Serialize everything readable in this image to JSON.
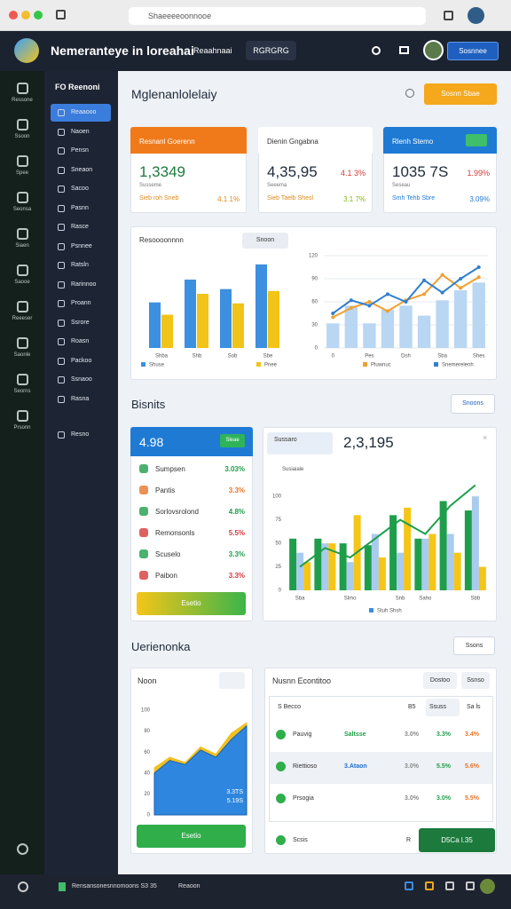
{
  "browser": {
    "url": "Shaeeeeoonnooe"
  },
  "header": {
    "title": "Nemeranteye in loreahai",
    "nav": "Reaahnaai",
    "tab": "RGRGRG",
    "action": "Sosnnee"
  },
  "rail": {
    "labels": [
      "Ressone",
      "Ssoon",
      "Spee",
      "Seonsa",
      "Siaen",
      "Saooe",
      "Reeeser",
      "Saonle",
      "Seorns",
      "Prsonn"
    ]
  },
  "sidebar": {
    "title": "FO Reenoni",
    "items": [
      "Reaaooo",
      "Naoen",
      "Pensn",
      "Sneaon",
      "Sacoo",
      "Pasnn",
      "Rasce",
      "Psnnee",
      "Ratsln",
      "Rarinnoo",
      "Proann",
      "Ssrore",
      "Roasn",
      "Packoo",
      "Ssnaoo",
      "Rasna"
    ],
    "footer": "Resno"
  },
  "page": {
    "title": "Mglenanlolelaiy",
    "action": "Sosnn Sbae"
  },
  "kpis": [
    {
      "title": "Resnanl Goerenn",
      "value": "1,3349",
      "sub": "Susseme",
      "foot_left": "Sieb roh Sneb",
      "foot_right": "4.1 1%",
      "accent": "#f07a1a",
      "value_color": "#1d7a3e"
    },
    {
      "title": "Dienin Gngabna",
      "value": "4,35,95",
      "change": "4.1 3%",
      "sub": "Seeema",
      "foot_left": "Sieb Taelb Shesl",
      "foot_right": "3.1 7%",
      "accent": "#ffffff",
      "value_color": "#1d2a3a"
    },
    {
      "title": "Rlenh Stemo",
      "value": "1035 7S",
      "change": "1.99%",
      "sub": "Seseau",
      "foot_left": "Smh Tehb Sbre",
      "foot_right": "3.09%",
      "accent": "#1f7ad4",
      "value_color": "#1d2a3a"
    }
  ],
  "overview": {
    "bar_chart": {
      "type": "bar",
      "title": "Resoooonnnn",
      "action": "Snoon",
      "categories": [
        "Shba",
        "Shb",
        "Sob",
        "Sbe"
      ],
      "ylim": [
        0,
        100
      ],
      "series": [
        {
          "name": "Shuse",
          "color": "#3d8fe0",
          "values": [
            48,
            72,
            62,
            88
          ]
        },
        {
          "name": "Pnee",
          "color": "#f2c318",
          "values": [
            35,
            57,
            47,
            60
          ]
        }
      ]
    },
    "combo_chart": {
      "type": "line",
      "categories": [
        "0",
        null,
        "Pes",
        null,
        "Dsh",
        null,
        "Sba",
        null,
        "Shes"
      ],
      "ylim": [
        0,
        120
      ],
      "yticks": [
        0,
        30,
        60,
        90,
        120
      ],
      "grid": true,
      "bar_color": "#b9d6f2",
      "values": [
        32,
        55,
        32,
        50,
        55,
        42,
        62,
        75,
        85
      ],
      "series": [
        {
          "name": "Pluwnuc",
          "color": "#f0a030",
          "values": [
            40,
            52,
            60,
            48,
            62,
            70,
            95,
            78,
            92
          ]
        },
        {
          "name": "Snemerelenh",
          "color": "#2f7fd0",
          "values": [
            45,
            62,
            55,
            70,
            60,
            88,
            72,
            90,
            105
          ]
        }
      ]
    }
  },
  "section2": {
    "title": "Bisnits",
    "action": "Snoons"
  },
  "summary": {
    "value": "4.98",
    "badge": "Sleae",
    "button": "Esetio",
    "items": [
      {
        "name": "Sumpsen",
        "change": "3.03%",
        "color": "#1e9e4a"
      },
      {
        "name": "Pantis",
        "change": "3.3%",
        "color": "#e8742a"
      },
      {
        "name": "Sorlovsrolond",
        "change": "4.8%",
        "color": "#1e9e4a"
      },
      {
        "name": "Remonsonls",
        "change": "5.5%",
        "color": "#d63a3a"
      },
      {
        "name": "Scuselo",
        "change": "3.3%",
        "color": "#1e9e4a"
      },
      {
        "name": "Paibon",
        "change": "3.3%",
        "color": "#d63a3a"
      }
    ]
  },
  "trend": {
    "filter": "Sussaro",
    "value": "2,3,195",
    "subtitle": "Susiaiale",
    "chart": {
      "type": "bar",
      "categories": [
        "Sba",
        null,
        "Slmo",
        null,
        "Snb",
        "Saho",
        null,
        "Sbb"
      ],
      "ylim": [
        0,
        120
      ],
      "yticks": [
        0,
        25,
        50,
        75,
        100
      ],
      "bar_groups": [
        {
          "color": "#1e9e4a",
          "values": [
            55,
            55,
            50,
            48,
            80,
            55,
            95,
            85
          ]
        },
        {
          "color": "#a9cbee",
          "values": [
            40,
            50,
            30,
            60,
            40,
            55,
            60,
            100
          ]
        },
        {
          "color": "#f5c518",
          "values": [
            30,
            50,
            80,
            35,
            88,
            60,
            40,
            25
          ]
        }
      ],
      "series": [
        {
          "name": "Stuh Shsh",
          "color": "#1e9e4a",
          "values": [
            25,
            45,
            35,
            55,
            75,
            60,
            90,
            112
          ]
        }
      ]
    }
  },
  "section3": {
    "title": "Uerienonka",
    "action": "Ssons"
  },
  "area_card": {
    "title": "Noon",
    "button": "Esetio",
    "chart": {
      "type": "area",
      "ylim": [
        0,
        100
      ],
      "yticks": [
        0,
        20,
        40,
        60,
        80,
        100
      ],
      "annotations": [
        "3.3TS",
        "5.19S"
      ],
      "series": [
        {
          "color": "#2e86de",
          "values": [
            40,
            52,
            48,
            62,
            55,
            72,
            85
          ]
        },
        {
          "color": "#f0c020",
          "values": [
            45,
            55,
            50,
            65,
            58,
            78,
            88
          ]
        }
      ]
    }
  },
  "table": {
    "title": "Nusnn Econtitoo",
    "buttons": [
      "Dostoo",
      "Ssnso"
    ],
    "header": [
      "S Becco",
      "B5",
      "Ssuss",
      "Sa ls"
    ],
    "rows": [
      [
        "Pauvig",
        "Saltsse",
        "3.0%",
        "3.3%",
        "3.4%"
      ],
      [
        "Riettioso",
        "3.Ataon",
        "3.0%",
        "5.5%",
        "5.6%"
      ],
      [
        "Prsogia",
        "",
        "3.0%",
        "3.0%",
        "5.5%"
      ]
    ],
    "footer": {
      "name": "Scsis",
      "code": "R",
      "button": "D5Ca l.35"
    }
  },
  "taskbar": {
    "text": "Rensansonesnnomoons S3 35",
    "app": "Reaoon"
  }
}
